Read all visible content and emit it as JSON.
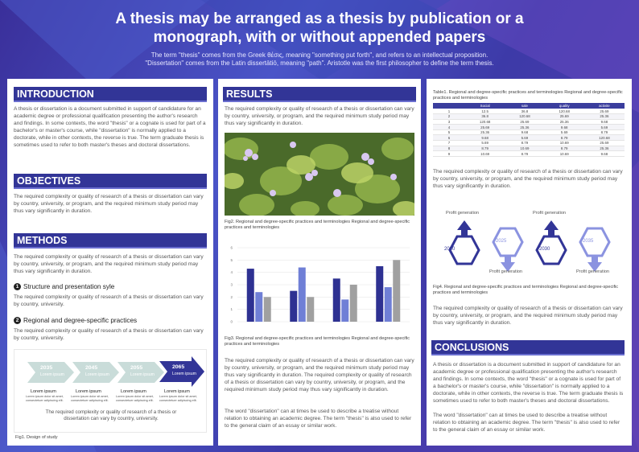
{
  "header": {
    "title_line1": "A thesis may be arranged as a thesis by publication or a",
    "title_line2": "monograph, with or without appended papers",
    "subtitle_line1": "The term \"thesis\" comes from the Greek θέσις, meaning \"something put forth\", and refers to an intellectual proposition.",
    "subtitle_line2": "\"Dissertation\" comes from the Latin dissertātiō, meaning \"path\". Aristotle was the first philosopher to define the term thesis."
  },
  "introduction": {
    "heading": "INTRODUCTION",
    "text": "A thesis or dissertation is a document submitted in support of candidature for an academic degree or professional qualification presenting the author's research and findings. In some contexts, the word \"thesis\" or a cognate is used for part of a bachelor's or master's course, while \"dissertation\" is normally applied to a doctorate, while in other contexts, the reverse is true. The term graduate thesis is sometimes used to refer to both master's theses and doctoral dissertations."
  },
  "objectives": {
    "heading": "OBJECTIVES",
    "text": "The required complexity or quality of research of a thesis or dissertation can vary by country, university, or program, and the required minimum study period may thus vary significantly in duration."
  },
  "methods": {
    "heading": "METHODS",
    "text": "The required complexity or quality of research of a thesis or dissertation can vary by country, university, or program, and the required minimum study period may thus vary significantly in duration.",
    "sub1_num": "1",
    "sub1_title": "Structure and presentation syle",
    "sub1_text": "The required complexity or quality of research of a thesis or dissertation can vary by country, university.",
    "sub2_num": "2",
    "sub2_title": "Regional and degree-specific practices",
    "sub2_text": "The required complexity or quality of research of a thesis or dissertation can vary by country, university.",
    "timeline": [
      {
        "year": "2035",
        "label": "Lorem ipsum",
        "title": "Lorem ipsum",
        "small": "Lorem ipsum dolor sit amet, consectetuer adipiscing elit."
      },
      {
        "year": "2045",
        "label": "Lorem ipsum",
        "title": "Lorem ipsum",
        "small": "Lorem ipsum dolor sit amet, consectetuer adipiscing elit."
      },
      {
        "year": "2055",
        "label": "Lorem ipsum",
        "title": "Lorem ipsum",
        "small": "Lorem ipsum dolor sit amet, consectetuer adipiscing elit."
      },
      {
        "year": "2065",
        "label": "Lorem ipsum",
        "title": "Lorem ipsum",
        "small": "Lorem ipsum dolor sit amet, consectetuer adipiscing elit."
      }
    ],
    "timeline_text": "The required complexity or quality of research of a thesis or dissertation can vary by country, university.",
    "fig1_caption": "Fig1. Design of study"
  },
  "results": {
    "heading": "RESULTS",
    "text1": "The required complexity or quality of research of a thesis or dissertation can vary by country, university, or program, and the required minimum study period may thus vary significantly in duration.",
    "fig2_caption": "Fig2. Regional and degree-specific practices and terminologies Regional and degree-specific practices and terminologies",
    "fig3_caption": "Fig3. Regional and degree-specific practices and terminologies Regional and degree-specific practices and terminologies",
    "text2": "The required complexity or quality of research of a thesis or dissertation can vary by country, university, or program, and the required minimum study period may thus vary significantly in duration. The required complexity or quality of research of a thesis or dissertation can vary by country, university, or program, and the required minimum study period may thus vary significantly in duration.",
    "text3": "The word \"dissertation\" can at times be used to describe a treatise without relation to obtaining an academic degree. The term \"thesis\" is also used to refer to the general claim of an essay or similar work."
  },
  "chart_data": {
    "type": "bar",
    "categories": [
      "",
      "",
      "",
      ""
    ],
    "series": [
      {
        "values": [
          4.3,
          2.5,
          3.5,
          4.5
        ],
        "color": "#2e3192"
      },
      {
        "values": [
          2.4,
          4.4,
          1.8,
          2.8
        ],
        "color": "#6f7fd6"
      },
      {
        "values": [
          2.0,
          2.0,
          3.0,
          5.0
        ],
        "color": "#a0a0a0"
      }
    ],
    "yticks": [
      "0",
      "1",
      "2",
      "3",
      "4",
      "5",
      "6"
    ],
    "ylim": [
      0,
      6
    ],
    "grid": true
  },
  "table": {
    "caption": "Table1. Regional and degree-specific practices and terminologies Regional and degree-specific practices and terminologies",
    "headers": [
      "",
      "Social",
      "sale",
      "quality",
      "activite"
    ],
    "rows": [
      [
        "1",
        "12.5",
        "36.8",
        "120.68",
        "25.69"
      ],
      [
        "2",
        "36.8",
        "120.68",
        "25.69",
        "25.36"
      ],
      [
        "3",
        "120.68",
        "25.69",
        "25.36",
        "9.68"
      ],
      [
        "4",
        "25.69",
        "25.36",
        "9.68",
        "5.69"
      ],
      [
        "5",
        "25.36",
        "9.68",
        "5.69",
        "8.79"
      ],
      [
        "6",
        "9.68",
        "5.69",
        "8.79",
        "120.68"
      ],
      [
        "7",
        "5.69",
        "8.79",
        "10.69",
        "25.69"
      ],
      [
        "8",
        "8.79",
        "10.69",
        "8.79",
        "25.36"
      ],
      [
        "9",
        "10.69",
        "8.79",
        "10.69",
        "9.68"
      ]
    ]
  },
  "col3": {
    "text1": "The required complexity or quality of research of a thesis or dissertation can vary by country, university, or program, and the required minimum study period may thus vary significantly in duration.",
    "hex": [
      {
        "year": "2020",
        "label": "Profit generation"
      },
      {
        "year": "2025",
        "label": "Profit generation"
      },
      {
        "year": "2030",
        "label": "Profit generation"
      },
      {
        "year": "2035",
        "label": "Profit generation"
      }
    ],
    "fig4_caption": "Fig4. Regional and degree-specific practices and terminologies Regional and degree-specific practices and terminologies",
    "text2": "The required complexity or quality of research of a thesis or dissertation can vary by country, university, or program, and the required minimum study period may thus vary significantly in duration."
  },
  "conclusions": {
    "heading": "CONCLUSIONS",
    "text1": "A thesis or dissertation is a document submitted in support of candidature for an academic degree or professional qualification presenting the author's research and findings. In some contexts, the word \"thesis\" or a cognate is used for part of a bachelor's or master's course, while \"dissertation\" is normally applied to a doctorate, while in other contexts, the reverse is true. The term graduate thesis is sometimes used to refer to both master's theses and doctoral dissertations.",
    "text2": "The word \"dissertation\" can at times be used to describe a treatise without relation to obtaining an academic degree. The term \"thesis\" is also used to refer to the general claim of an essay or similar work."
  },
  "colors": {
    "accent": "#323597",
    "light_accent": "#8b93e0",
    "timeline_light": "#c9dcd9"
  }
}
